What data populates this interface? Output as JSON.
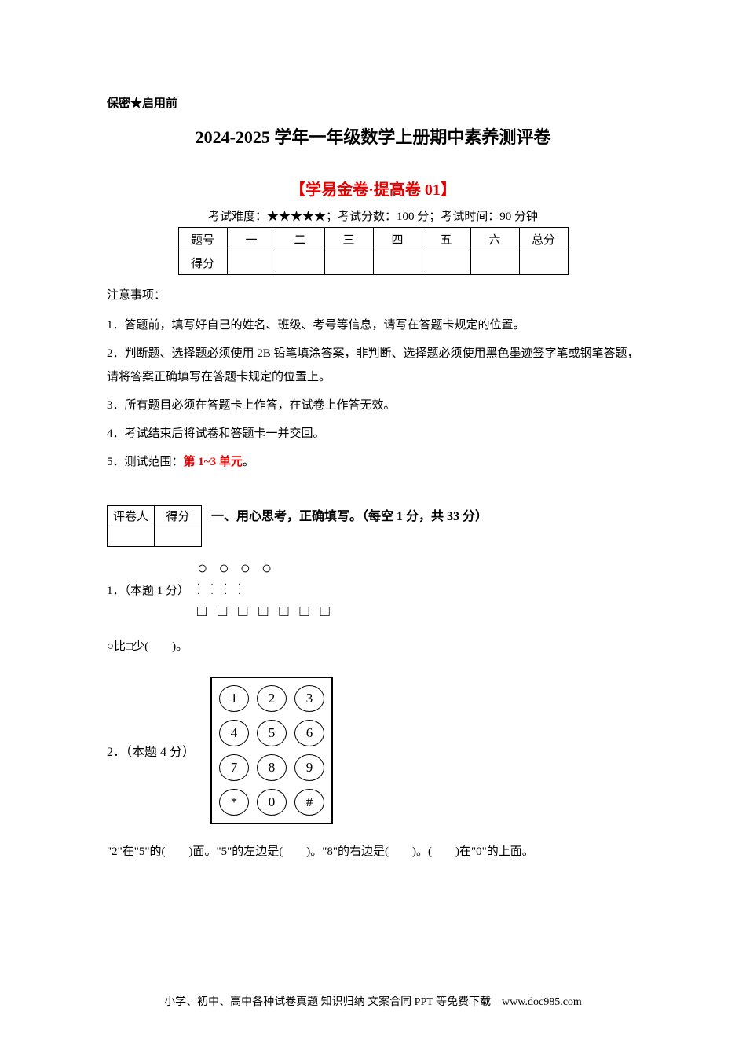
{
  "confidential": "保密★启用前",
  "main_title": "2024-2025 学年一年级数学上册期中素养测评卷",
  "sub_title": "【学易金卷·提高卷 01】",
  "exam_info_prefix": "考试难度：",
  "stars": "★★★★★",
  "exam_info_suffix": "；考试分数：100 分；考试时间：90 分钟",
  "score_table": {
    "header": [
      "题号",
      "一",
      "二",
      "三",
      "四",
      "五",
      "六",
      "总分"
    ],
    "row_label": "得分"
  },
  "notice_heading": "注意事项：",
  "notices": [
    "1．答题前，填写好自己的姓名、班级、考号等信息，请写在答题卡规定的位置。",
    "2．判断题、选择题必须使用 2B 铅笔填涂答案，非判断、选择题必须使用黑色墨迹签字笔或钢笔答题，请将答案正确填写在答题卡规定的位置上。",
    "3．所有题目必须在答题卡上作答，在试卷上作答无效。",
    "4．考试结束后将试卷和答题卡一并交回。"
  ],
  "notice5_prefix": "5．测试范围：",
  "notice5_red": "第 1~3 单元",
  "notice5_suffix": "。",
  "grader_table": [
    "评卷人",
    "得分"
  ],
  "section1_title": "一、用心思考，正确填写。（每空 1 分，共 33 分）",
  "q1_label": "1．（本题 1 分）",
  "q1_text": "○比□少(　　)。",
  "q2_label": "2．（本题 4 分）",
  "keypad_keys": [
    "1",
    "2",
    "3",
    "4",
    "5",
    "6",
    "7",
    "8",
    "9",
    "*",
    "0",
    "#"
  ],
  "q2_text": "\"2\"在\"5\"的(　　)面。\"5\"的左边是(　　)。\"8\"的右边是(　　)。(　　)在\"0\"的上面。",
  "footer": "小学、初中、高中各种试卷真题  知识归纳  文案合同  PPT 等免费下载　www.doc985.com"
}
